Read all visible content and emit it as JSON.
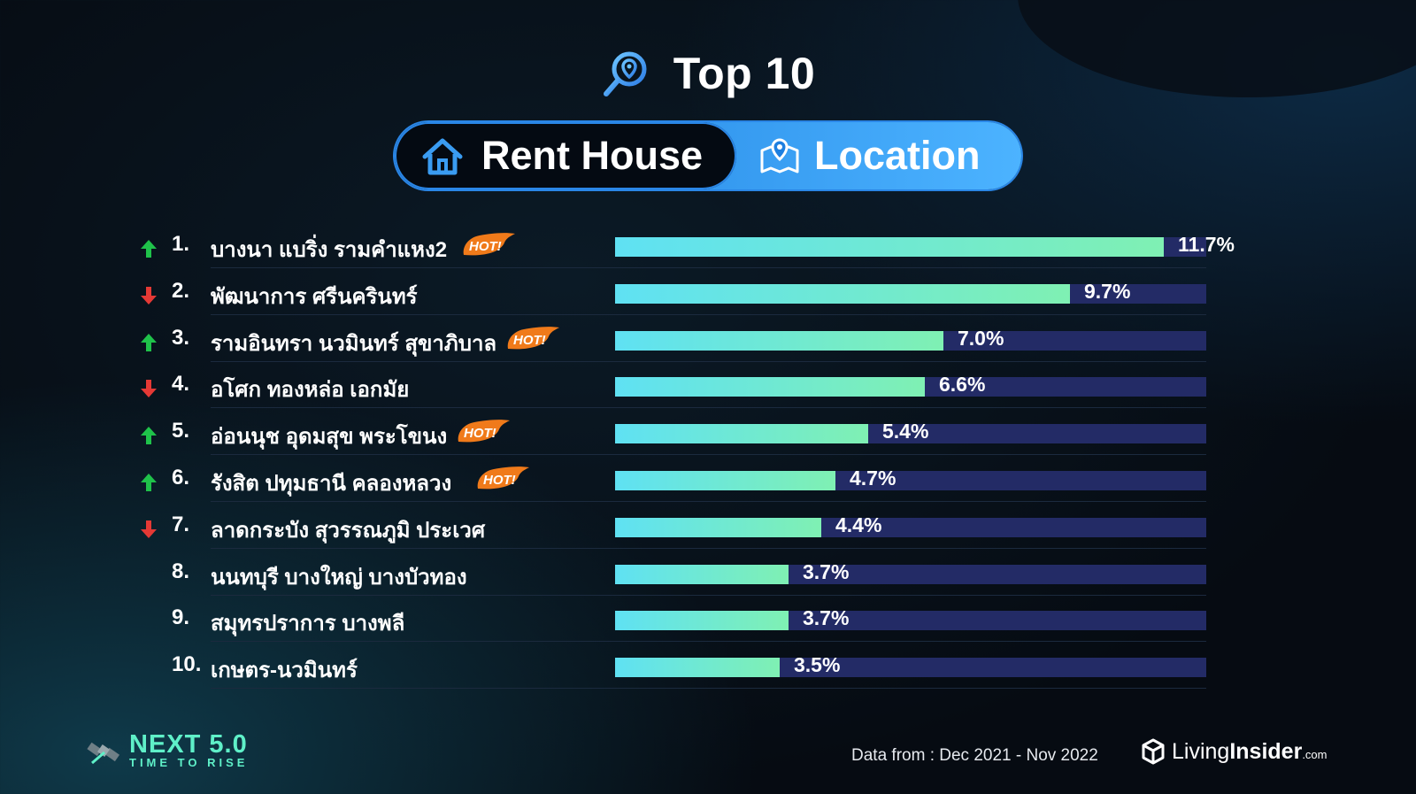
{
  "header": {
    "title": "Top 10"
  },
  "tabs": {
    "left_label": "Rent House",
    "right_label": "Location"
  },
  "chart_data": {
    "type": "bar",
    "orientation": "horizontal",
    "title": "Top 10",
    "max_reference": 12.6,
    "categories": [
      "บางนา แบริ่ง รามคำแหง2",
      "พัฒนาการ ศรีนครินทร์",
      "รามอินทรา นวมินทร์ สุขาภิบาล",
      "อโศก ทองหล่อ เอกมัย",
      "อ่อนนุช อุดมสุข พระโขนง",
      "รังสิต ปทุมธานี คลองหลวง",
      "ลาดกระบัง สุวรรณภูมิ ประเวศ",
      "นนทบุรี บางใหญ่ บางบัวทอง",
      "สมุทรปราการ บางพลี",
      "เกษตร-นวมินทร์"
    ],
    "values": [
      11.7,
      9.7,
      7.0,
      6.6,
      5.4,
      4.7,
      4.4,
      3.7,
      3.7,
      3.5
    ],
    "value_labels": [
      "11.7%",
      "9.7%",
      "7.0%",
      "6.6%",
      "5.4%",
      "4.7%",
      "4.4%",
      "3.7%",
      "3.7%",
      "3.5%"
    ],
    "ranks": [
      "1.",
      "2.",
      "3.",
      "4.",
      "5.",
      "6.",
      "7.",
      "8.",
      "9.",
      "10."
    ],
    "trend": [
      "up",
      "down",
      "up",
      "down",
      "up",
      "up",
      "down",
      "none",
      "none",
      "none"
    ],
    "hot": [
      true,
      false,
      true,
      false,
      true,
      true,
      false,
      false,
      false,
      false
    ],
    "hot_label": "HOT!",
    "colors": {
      "bar_start": "#5fe1f3",
      "bar_end": "#7ff0b3",
      "track": "#232b66",
      "up": "#1fc24a",
      "down": "#e53935"
    }
  },
  "footer": {
    "next_title": "NEXT 5.0",
    "next_subtitle": "TIME TO RISE",
    "data_from": "Data from : Dec 2021 - Nov 2022",
    "brand_light": "Living",
    "brand_bold": "Insider",
    "brand_suffix": ".com"
  },
  "icons": [
    "location-search-icon",
    "house-icon",
    "map-pin-icon",
    "arrow-up-icon",
    "arrow-down-icon",
    "hot-badge-icon",
    "satellite-icon",
    "livinginsider-cube-icon"
  ]
}
